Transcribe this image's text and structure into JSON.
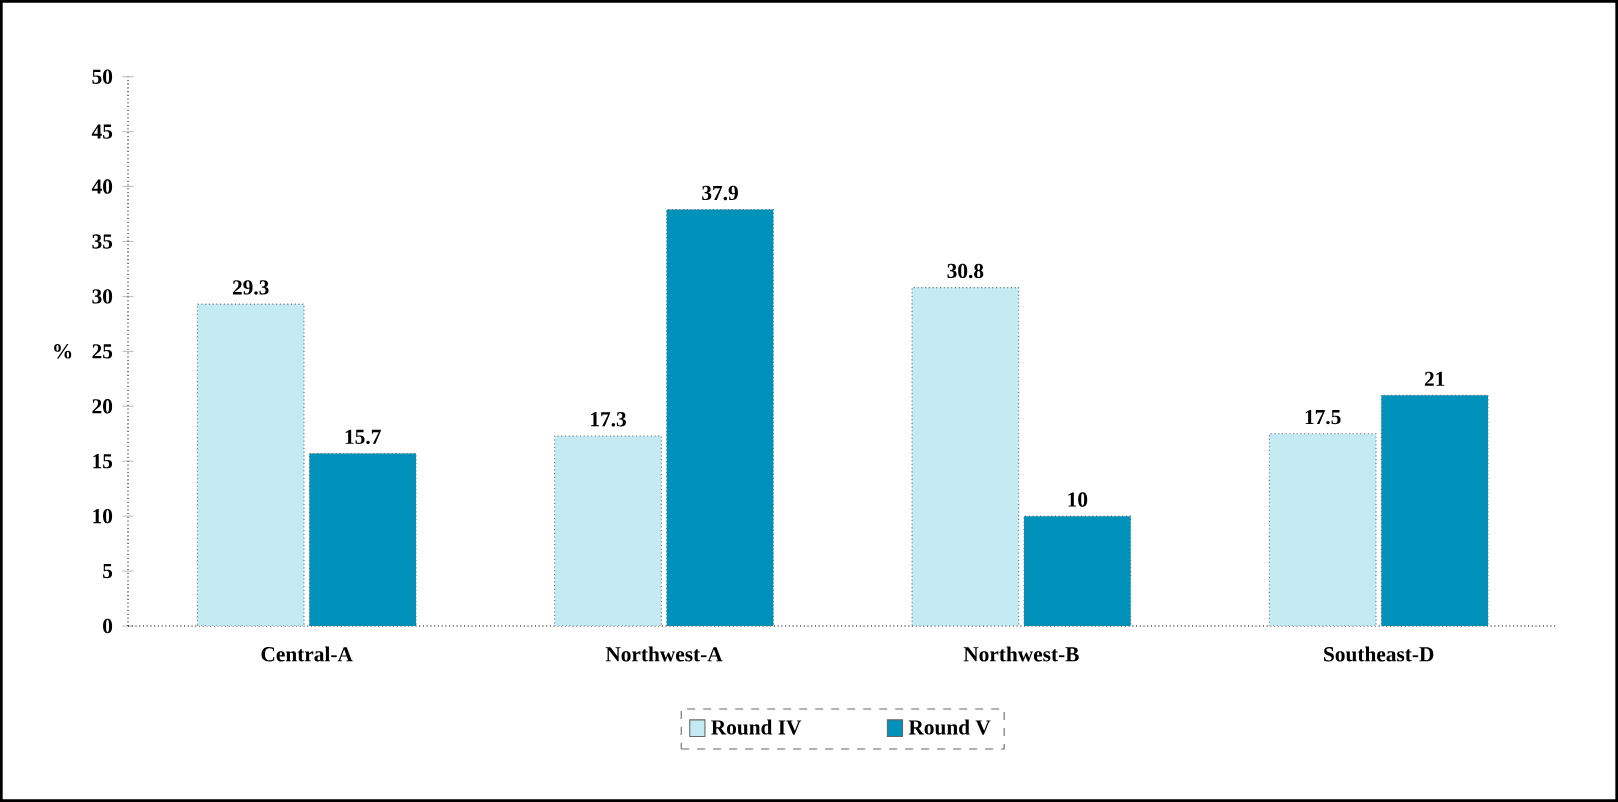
{
  "chart_data": {
    "type": "bar",
    "ylabel": "%",
    "categories": [
      "Central-A",
      "Northwest-A",
      "Northwest-B",
      "Southeast-D"
    ],
    "series": [
      {
        "name": "Round IV",
        "color": "#c4eaf4",
        "values": [
          29.3,
          17.3,
          30.8,
          17.5
        ]
      },
      {
        "name": "Round V",
        "color": "#0092bb",
        "values": [
          15.7,
          37.9,
          10,
          21
        ]
      }
    ],
    "ylim": [
      0,
      50
    ],
    "yticks": [
      0,
      5,
      10,
      15,
      20,
      25,
      30,
      35,
      40,
      45,
      50
    ],
    "data_labels": true,
    "legend": "bottom",
    "grid": false
  }
}
